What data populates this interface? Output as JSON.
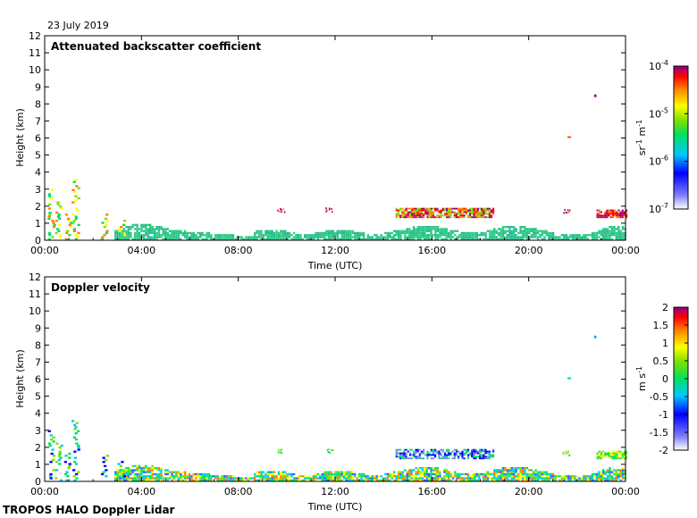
{
  "date_label": "23 July 2019",
  "footer_label": "TROPOS HALO Doppler Lidar",
  "chart_data": [
    {
      "type": "heatmap",
      "title": "Attenuated backscatter coefficient",
      "xlabel": "Time (UTC)",
      "ylabel": "Height (km)",
      "xlim": [
        0,
        24
      ],
      "ylim": [
        0,
        12
      ],
      "x_tick_labels": [
        "00:00",
        "04:00",
        "08:00",
        "12:00",
        "16:00",
        "20:00",
        "00:00"
      ],
      "y_tick_labels": [
        "0",
        "1",
        "2",
        "3",
        "4",
        "5",
        "6",
        "7",
        "8",
        "9",
        "10",
        "11",
        "12"
      ],
      "colorbar": {
        "unit_label": "sr",
        "unit_exp": "-1",
        "unit_label2": "m",
        "unit_exp2": "-1",
        "scale": "log",
        "ticks": [
          {
            "base": "10",
            "exp": "-4",
            "frac": 1.0
          },
          {
            "base": "10",
            "exp": "-5",
            "frac": 0.6667
          },
          {
            "base": "10",
            "exp": "-6",
            "frac": 0.3333
          },
          {
            "base": "10",
            "exp": "-7",
            "frac": 0.0
          }
        ]
      }
    },
    {
      "type": "heatmap",
      "title": "Doppler velocity",
      "xlabel": "Time (UTC)",
      "ylabel": "Height (km)",
      "xlim": [
        0,
        24
      ],
      "ylim": [
        0,
        12
      ],
      "x_tick_labels": [
        "00:00",
        "04:00",
        "08:00",
        "12:00",
        "16:00",
        "20:00",
        "00:00"
      ],
      "y_tick_labels": [
        "0",
        "1",
        "2",
        "3",
        "4",
        "5",
        "6",
        "7",
        "8",
        "9",
        "10",
        "11",
        "12"
      ],
      "colorbar": {
        "unit_label": "m s",
        "unit_exp": "-1",
        "scale": "linear",
        "ticks": [
          {
            "label": "2",
            "frac": 1.0
          },
          {
            "label": "1.5",
            "frac": 0.875
          },
          {
            "label": "1",
            "frac": 0.75
          },
          {
            "label": "0.5",
            "frac": 0.625
          },
          {
            "label": "0",
            "frac": 0.5
          },
          {
            "label": "-0.5",
            "frac": 0.375
          },
          {
            "label": "-1",
            "frac": 0.25
          },
          {
            "label": "-1.5",
            "frac": 0.125
          },
          {
            "label": "-2",
            "frac": 0.0
          }
        ]
      }
    }
  ]
}
